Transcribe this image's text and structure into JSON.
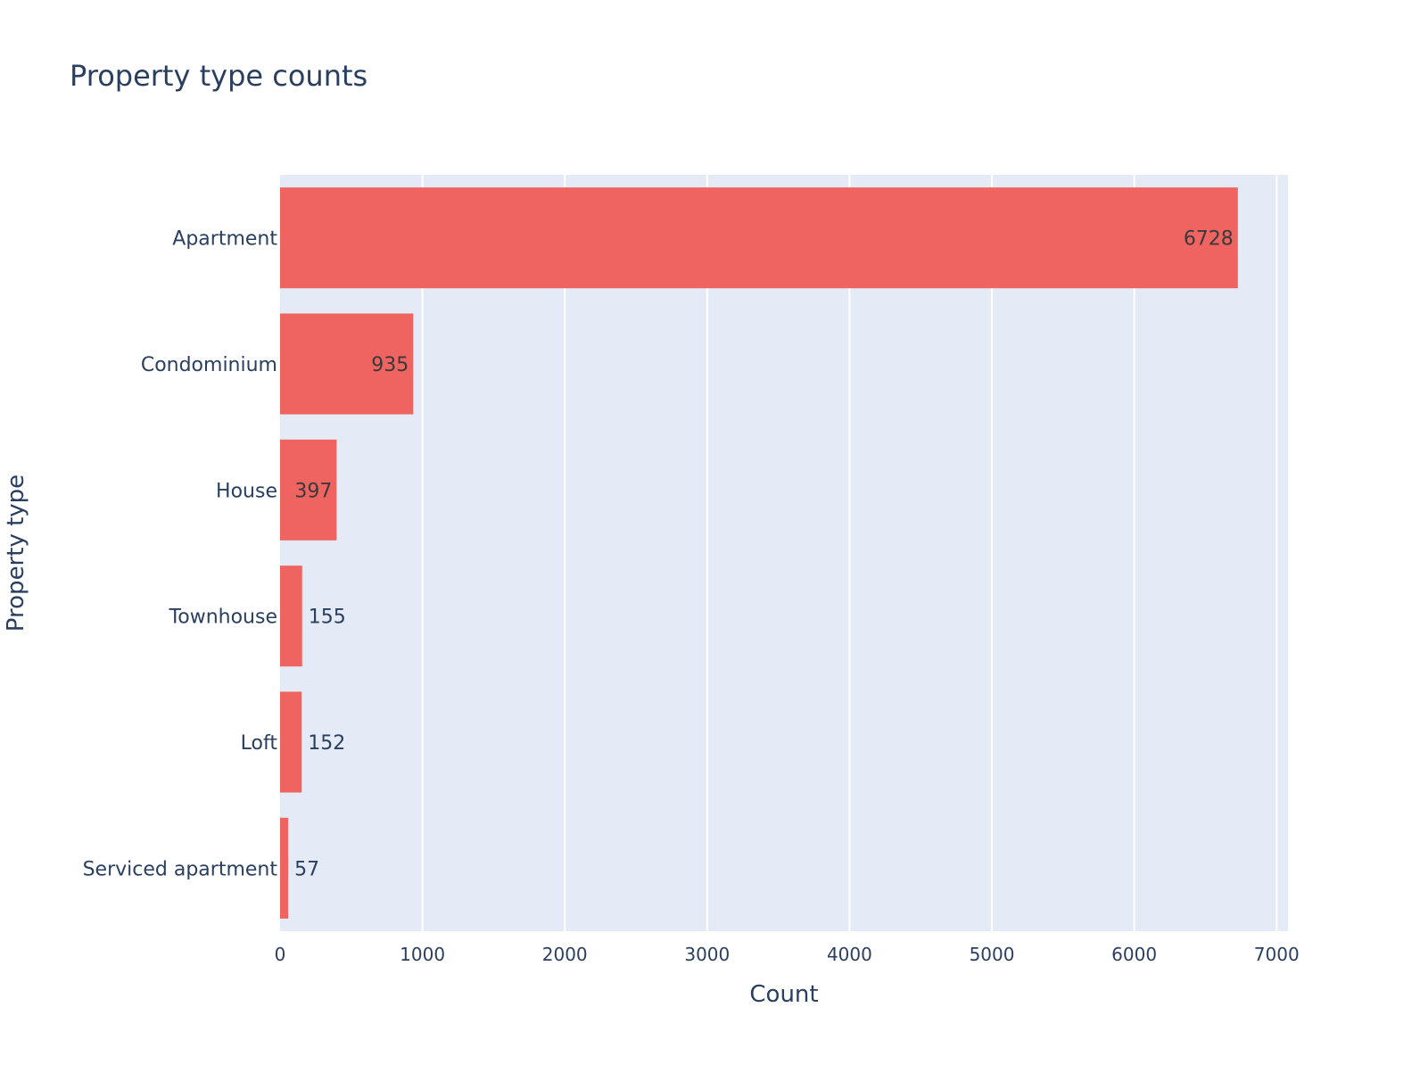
{
  "chart_data": {
    "type": "bar",
    "orientation": "horizontal",
    "title": "Property type counts",
    "xlabel": "Count",
    "ylabel": "Property type",
    "categories": [
      "Apartment",
      "Condominium",
      "House",
      "Townhouse",
      "Loft",
      "Serviced apartment"
    ],
    "values": [
      6728,
      935,
      397,
      155,
      152,
      57
    ],
    "xlim": [
      0,
      7080
    ],
    "x_ticks": [
      0,
      1000,
      2000,
      3000,
      4000,
      5000,
      6000,
      7000
    ],
    "grid": true,
    "bar_color": "#EF6461",
    "plot_background": "#E5EBF6",
    "text_color": "#2A3F5F"
  }
}
